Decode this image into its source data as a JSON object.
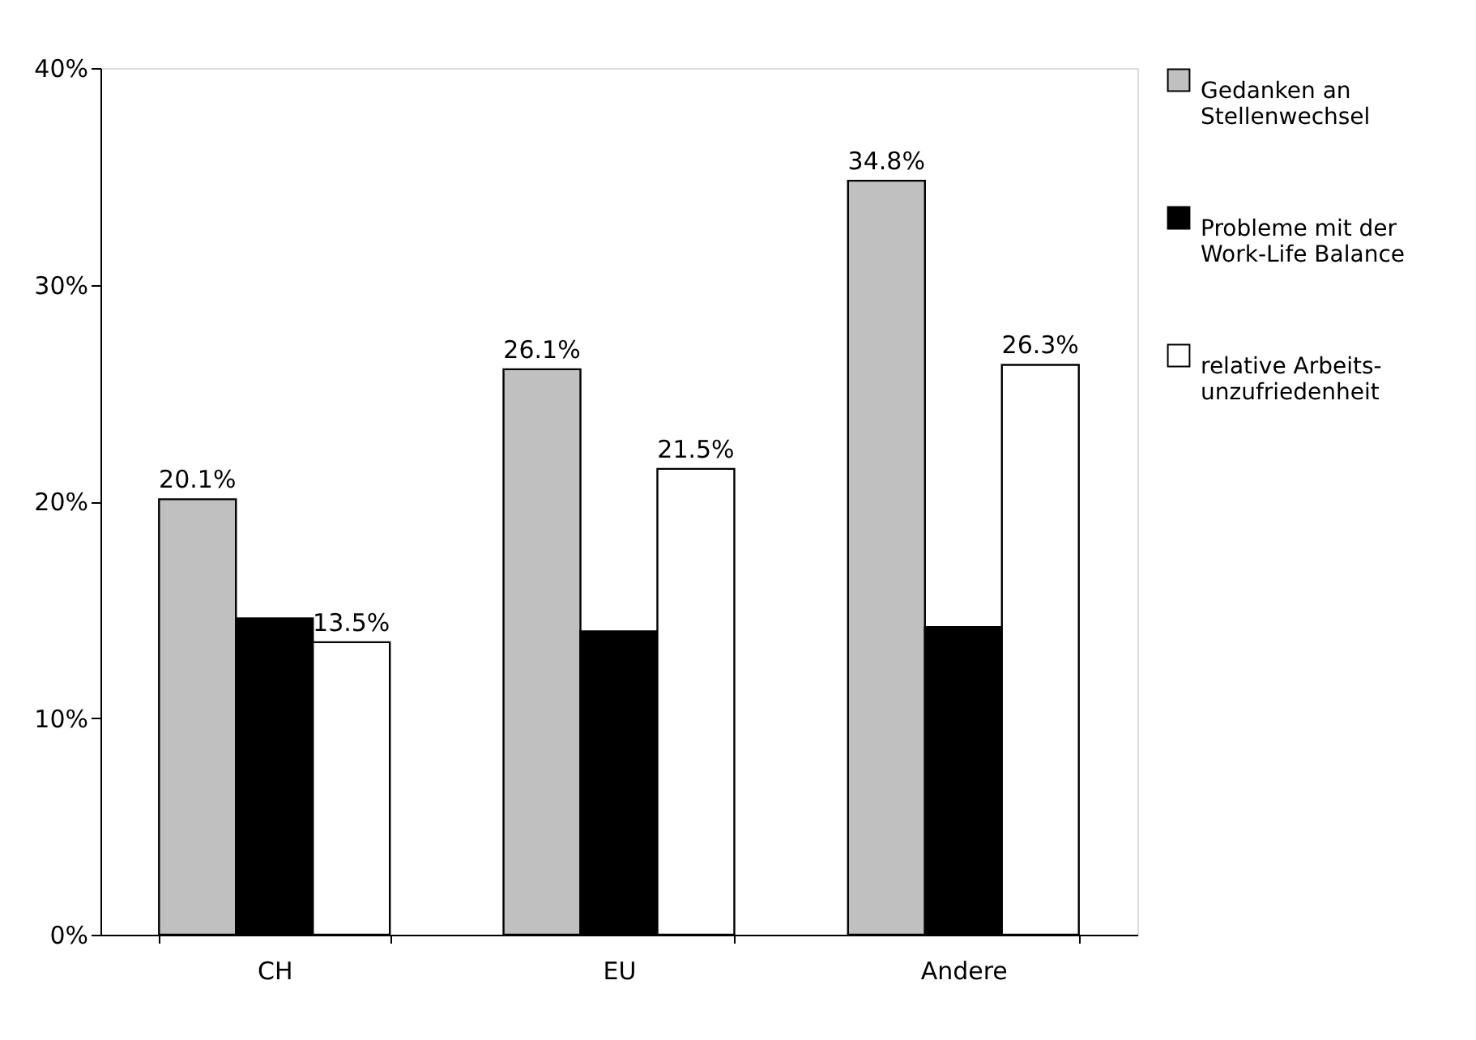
{
  "chart_data": {
    "type": "bar",
    "categories": [
      "CH",
      "EU",
      "Andere"
    ],
    "series": [
      {
        "name": "Gedanken an Stellenwechsel",
        "color": "#c0c0c0",
        "values": [
          20.1,
          26.1,
          34.8
        ],
        "value_labels": [
          "20.1%",
          "26.1%",
          "34.8%"
        ]
      },
      {
        "name": "Probleme mit der Work-Life Balance",
        "color": "#000000",
        "values": [
          14.6,
          14.0,
          14.2
        ],
        "value_labels": [
          null,
          null,
          null
        ]
      },
      {
        "name": "relative Arbeits-unzufriedenheit",
        "color": "#ffffff",
        "values": [
          13.5,
          21.5,
          26.3
        ],
        "value_labels": [
          "13.5%",
          "21.5%",
          "26.3%"
        ]
      }
    ],
    "ylim": [
      0,
      40
    ],
    "yticks": [
      {
        "value": 0,
        "label": "0%"
      },
      {
        "value": 10,
        "label": "10%"
      },
      {
        "value": 20,
        "label": "20%"
      },
      {
        "value": 30,
        "label": "30%"
      },
      {
        "value": 40,
        "label": "40%"
      }
    ],
    "grid": false,
    "legend": "right"
  }
}
